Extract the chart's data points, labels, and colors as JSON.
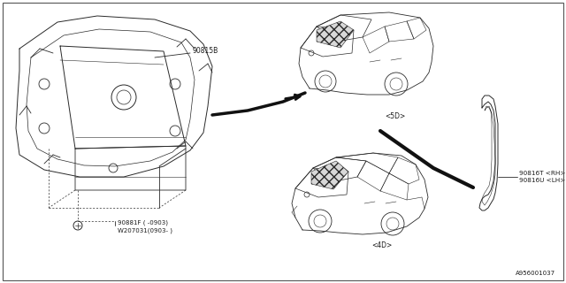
{
  "bg_color": "#ffffff",
  "line_color": "#2a2a2a",
  "text_color": "#1a1a1a",
  "diagram_id": "A956001037",
  "label_90815B": "90815B",
  "label_90881F": "90881F ( -0903)",
  "label_90881F2": "W207031(0903- )",
  "label_5D": "<5D>",
  "label_4D": "<4D>",
  "label_90816T": "90816T <RH>",
  "label_90816U": "90816U <LH>",
  "font_size": 5.5,
  "dpi": 100,
  "figsize": [
    6.4,
    3.2
  ]
}
